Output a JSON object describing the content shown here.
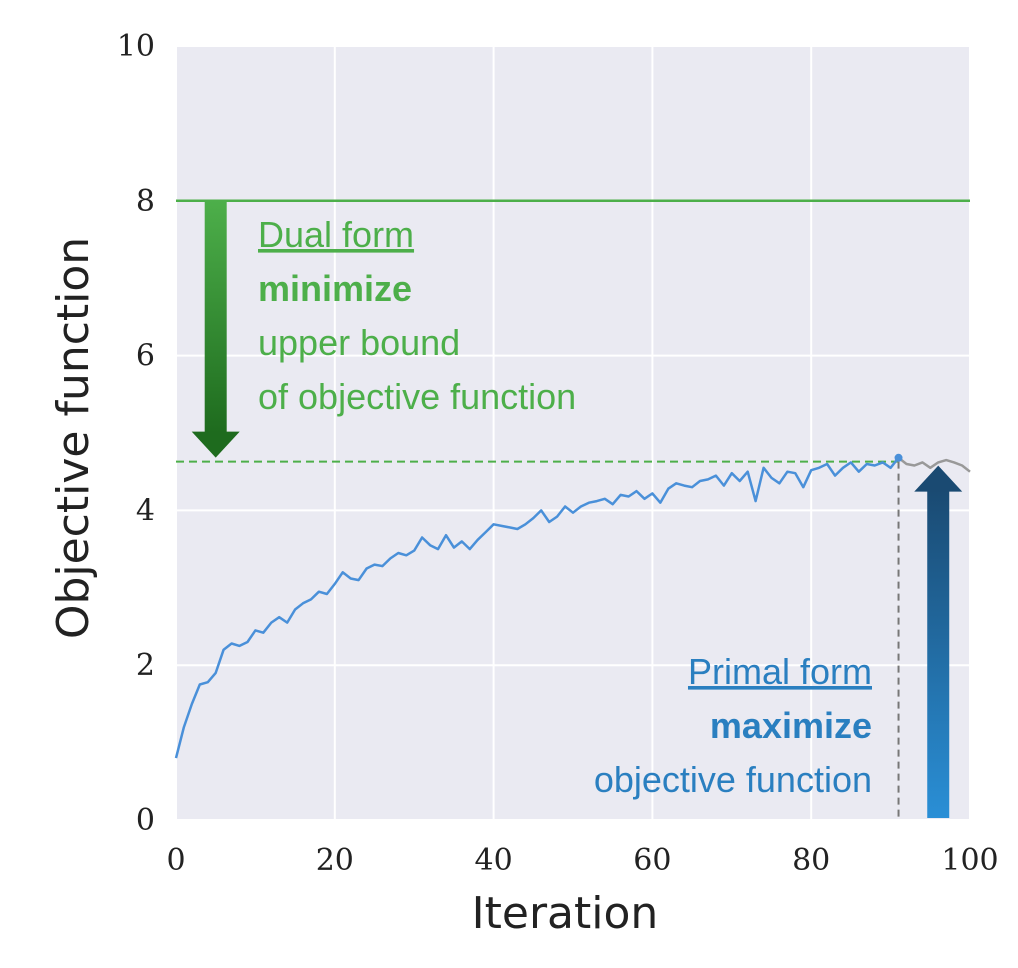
{
  "chart_data": {
    "type": "line",
    "xlabel": "Iteration",
    "ylabel": "Objective function",
    "xlim": [
      0,
      100
    ],
    "ylim": [
      0,
      10
    ],
    "xticks": [
      "0",
      "20",
      "40",
      "60",
      "80",
      "100"
    ],
    "yticks": [
      "0",
      "2",
      "4",
      "6",
      "8",
      "10"
    ],
    "grid": true,
    "colors": {
      "background": "#eaeaf2",
      "grid": "#ffffff",
      "series": "#4a90d9",
      "series_after": "#999999",
      "dual": "#4daf4a",
      "dual_dark": "#1e6b1e",
      "primal": "#2a7fc0",
      "primal_dark": "#1a4a72"
    },
    "series": [
      {
        "x": [
          0,
          1,
          2,
          3,
          4,
          5,
          6,
          7,
          8,
          9,
          10,
          11,
          12,
          13,
          14,
          15,
          16,
          17,
          18,
          19,
          20,
          21,
          22,
          23,
          24,
          25,
          26,
          27,
          28,
          29,
          30,
          31,
          32,
          33,
          34,
          35,
          36,
          37,
          38,
          39,
          40,
          41,
          42,
          43,
          44,
          45,
          46,
          47,
          48,
          49,
          50,
          51,
          52,
          53,
          54,
          55,
          56,
          57,
          58,
          59,
          60,
          61,
          62,
          63,
          64,
          65,
          66,
          67,
          68,
          69,
          70,
          71,
          72,
          73,
          74,
          75,
          76,
          77,
          78,
          79,
          80,
          81,
          82,
          83,
          84,
          85,
          86,
          87,
          88,
          89,
          90,
          91
        ],
        "y": [
          0.8,
          1.2,
          1.5,
          1.75,
          1.78,
          1.9,
          2.2,
          2.28,
          2.25,
          2.3,
          2.45,
          2.42,
          2.55,
          2.62,
          2.55,
          2.72,
          2.8,
          2.85,
          2.95,
          2.92,
          3.05,
          3.2,
          3.12,
          3.1,
          3.25,
          3.3,
          3.28,
          3.38,
          3.45,
          3.42,
          3.48,
          3.65,
          3.55,
          3.5,
          3.68,
          3.52,
          3.6,
          3.5,
          3.62,
          3.72,
          3.82,
          3.8,
          3.78,
          3.76,
          3.82,
          3.9,
          4.0,
          3.85,
          3.92,
          4.05,
          3.97,
          4.05,
          4.1,
          4.12,
          4.15,
          4.08,
          4.2,
          4.18,
          4.25,
          4.15,
          4.22,
          4.1,
          4.28,
          4.35,
          4.32,
          4.3,
          4.38,
          4.4,
          4.45,
          4.32,
          4.48,
          4.38,
          4.5,
          4.12,
          4.55,
          4.42,
          4.35,
          4.5,
          4.48,
          4.3,
          4.52,
          4.55,
          4.6,
          4.45,
          4.55,
          4.62,
          4.5,
          4.6,
          4.58,
          4.62,
          4.55,
          4.68
        ]
      },
      {
        "x": [
          91,
          92,
          93,
          94,
          95,
          96,
          97,
          98,
          99,
          100
        ],
        "y": [
          4.68,
          4.6,
          4.58,
          4.62,
          4.55,
          4.62,
          4.65,
          4.62,
          4.58,
          4.5
        ]
      }
    ],
    "reference_lines": [
      {
        "axis": "y",
        "value": 8,
        "style": "solid"
      },
      {
        "axis": "y",
        "value": 4.63,
        "style": "dashed"
      },
      {
        "axis": "x",
        "value": 91,
        "style": "dashed"
      }
    ],
    "dual_arrow": {
      "x": 5,
      "from": 8,
      "to": 4.63
    },
    "primal_arrow": {
      "x": 96,
      "from": 0,
      "to": 4.63
    }
  },
  "annotations": {
    "dual": {
      "title": "Dual form",
      "action": "minimize",
      "line1": "upper bound",
      "line2": "of objective function"
    },
    "primal": {
      "title": "Primal form",
      "action": "maximize",
      "line1": "objective function"
    }
  }
}
